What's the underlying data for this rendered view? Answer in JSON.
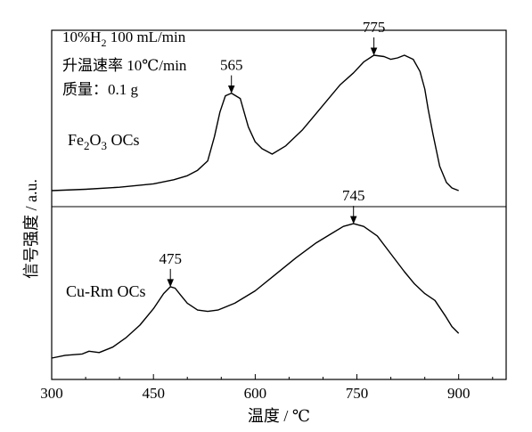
{
  "chart_data": {
    "type": "line",
    "xlabel": "温度 / ℃",
    "ylabel": "信号强度 / a.u.",
    "xlim": [
      300,
      970
    ],
    "x_ticks": [
      "300",
      "450",
      "600",
      "750",
      "900"
    ],
    "conditions": {
      "line1_prefix": "10%H",
      "line1_sub": "2",
      "line1_suffix": " 100 mL/min",
      "line2": "升温速率 10℃/min",
      "line3": "质量：0.1 g"
    },
    "panels": [
      {
        "name_parts": [
          {
            "t": "Fe",
            "sub": false
          },
          {
            "t": "2",
            "sub": true
          },
          {
            "t": "O",
            "sub": false
          },
          {
            "t": "3",
            "sub": true
          },
          {
            "t": " OCs",
            "sub": false
          }
        ],
        "ylim": [
          0,
          100
        ],
        "x": [
          300,
          350,
          400,
          450,
          480,
          500,
          515,
          530,
          540,
          548,
          556,
          565,
          578,
          590,
          600,
          610,
          625,
          645,
          670,
          700,
          725,
          745,
          760,
          775,
          790,
          800,
          810,
          820,
          833,
          843,
          850,
          855,
          862,
          872,
          882,
          890,
          900
        ],
        "y": [
          0,
          1,
          2.5,
          5,
          8,
          11,
          15,
          22,
          40,
          58,
          70,
          72,
          68,
          47,
          36,
          31,
          27,
          33,
          45,
          63,
          78,
          87,
          95,
          100,
          99,
          97,
          98,
          100,
          97,
          88,
          75,
          60,
          42,
          18,
          6,
          2,
          0
        ],
        "peaks": [
          {
            "label": "565",
            "x": 565,
            "y": 72
          },
          {
            "label": "775",
            "x": 775,
            "y": 100
          }
        ]
      },
      {
        "name": "Cu-Rm OCs",
        "ylim": [
          0,
          100
        ],
        "x": [
          300,
          320,
          345,
          355,
          370,
          390,
          410,
          430,
          450,
          465,
          475,
          482,
          490,
          500,
          515,
          530,
          545,
          570,
          600,
          630,
          660,
          690,
          710,
          730,
          745,
          760,
          780,
          800,
          820,
          835,
          850,
          865,
          880,
          890,
          900
        ],
        "y": [
          0,
          2,
          3,
          5,
          4,
          8,
          15,
          24,
          36,
          47,
          52,
          51,
          46,
          40,
          35,
          34,
          35,
          40,
          49,
          61,
          73,
          84,
          90,
          96,
          98,
          96,
          89,
          76,
          63,
          54,
          47,
          42,
          31,
          23,
          18
        ],
        "peaks": [
          {
            "label": "475",
            "x": 475,
            "y": 52
          },
          {
            "label": "745",
            "x": 745,
            "y": 98
          }
        ]
      }
    ]
  }
}
